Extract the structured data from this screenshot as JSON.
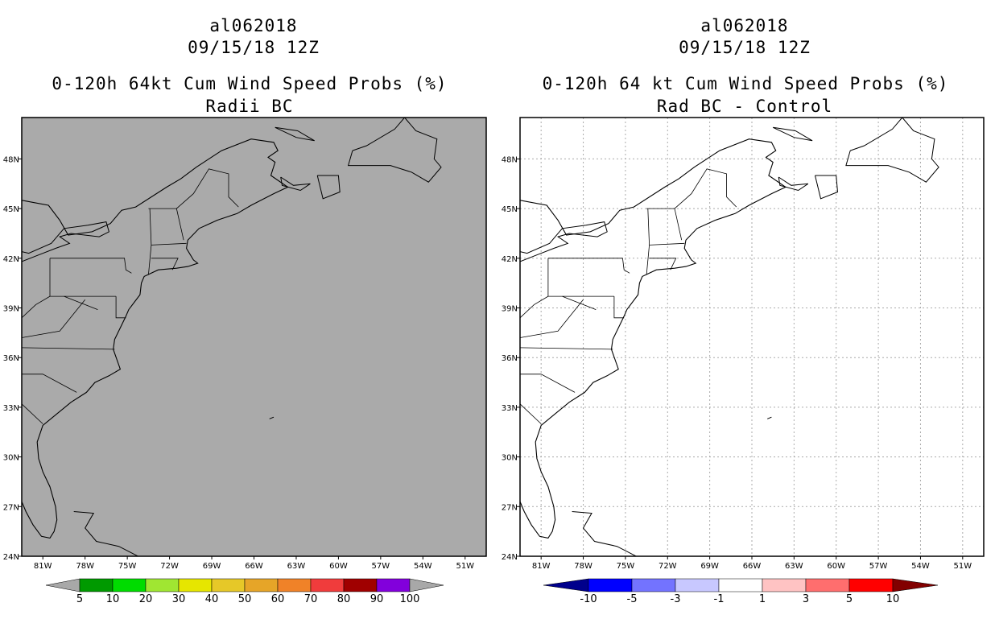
{
  "left_panel": {
    "storm_id": "al062018",
    "date": "09/15/18 12Z",
    "title": "0-120h 64kt Cum Wind Speed Probs (%)",
    "subtitle": "Radii BC",
    "background_color": "#aaaaaa",
    "colorbar": {
      "colors": [
        "#009a00",
        "#00dc00",
        "#a0e632",
        "#e6e600",
        "#e6c828",
        "#e6a528",
        "#f08228",
        "#f03c3c",
        "#a00000",
        "#8200dc"
      ],
      "labels": [
        "5",
        "10",
        "20",
        "30",
        "40",
        "50",
        "60",
        "70",
        "80",
        "90",
        "100"
      ],
      "end_arrow_color": "#a8a8a8"
    }
  },
  "right_panel": {
    "storm_id": "al062018",
    "date": "09/15/18 12Z",
    "title": "0-120h 64 kt Cum Wind Speed Probs (%)",
    "subtitle": "Rad BC - Control",
    "background_color": "#ffffff",
    "colorbar": {
      "colors": [
        "#0000ff",
        "#7373ff",
        "#c8c8ff",
        "#ffffff",
        "#ffc3c3",
        "#ff6e6e",
        "#ff0000"
      ],
      "labels": [
        "-10",
        "-5",
        "-3",
        "-1",
        "1",
        "3",
        "5",
        "10"
      ],
      "low_arrow_color": "#00008c",
      "high_arrow_color": "#820000"
    }
  },
  "map": {
    "lon_labels": [
      "81W",
      "78W",
      "75W",
      "72W",
      "69W",
      "66W",
      "63W",
      "60W",
      "57W",
      "54W",
      "51W"
    ],
    "lat_labels": [
      "48N",
      "45N",
      "42N",
      "39N",
      "36N",
      "33N",
      "30N",
      "27N",
      "24N"
    ],
    "lon_range": [
      -82.5,
      -49.5
    ],
    "lat_range": [
      24,
      50.5
    ]
  }
}
